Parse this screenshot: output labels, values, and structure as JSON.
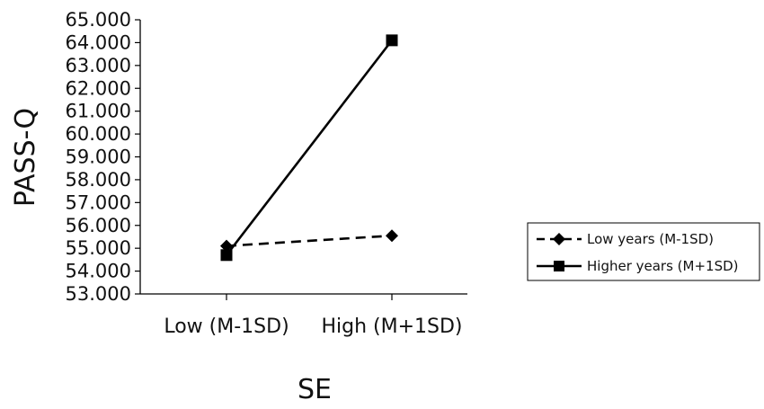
{
  "chart_data": {
    "type": "line",
    "title": "",
    "xlabel": "SE",
    "ylabel": "PASS-Q",
    "categories": [
      "Low (M-1SD)",
      "High (M+1SD)"
    ],
    "y_ticks": [
      "53.000",
      "54.000",
      "55.000",
      "56.000",
      "57.000",
      "58.000",
      "59.000",
      "60.000",
      "61.000",
      "62.000",
      "63.000",
      "64.000",
      "65.000"
    ],
    "ylim": [
      53,
      65
    ],
    "grid": false,
    "legend_position": "right",
    "series": [
      {
        "name": "Low years (M-1SD)",
        "values": [
          55.1,
          55.55
        ],
        "marker": "diamond",
        "line_style": "dashed",
        "color": "#000000"
      },
      {
        "name": "Higher years (M+1SD)",
        "values": [
          54.7,
          64.1
        ],
        "marker": "square",
        "line_style": "solid",
        "color": "#000000"
      }
    ]
  }
}
